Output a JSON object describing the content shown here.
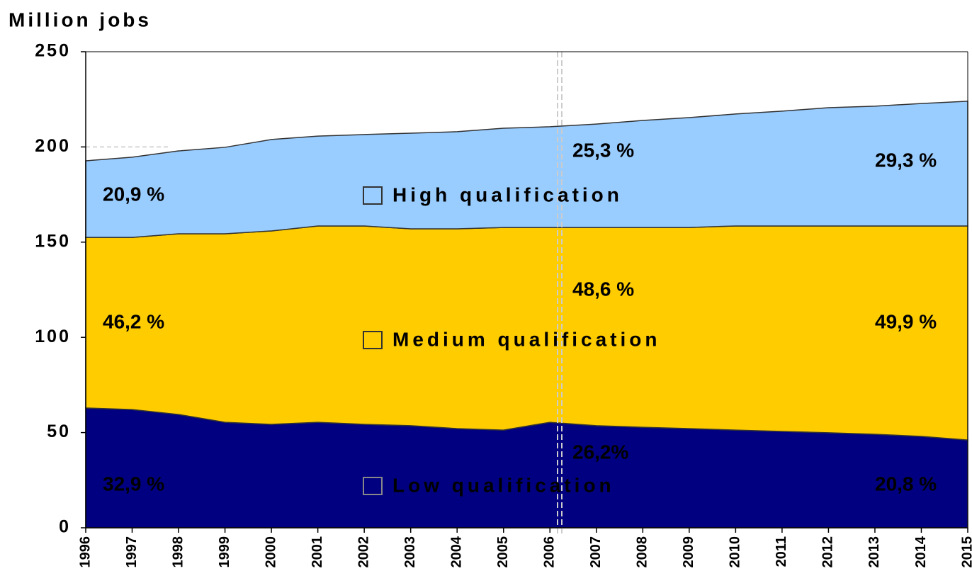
{
  "chart_data": {
    "type": "stacked_area",
    "title": "Million jobs",
    "x": [
      1996,
      1997,
      1998,
      1999,
      2000,
      2001,
      2002,
      2003,
      2004,
      2005,
      2006,
      2007,
      2008,
      2009,
      2010,
      2011,
      2012,
      2013,
      2014,
      2015
    ],
    "xlim": [
      1996,
      2015
    ],
    "ylim": [
      0,
      250
    ],
    "yticks": [
      0,
      50,
      100,
      150,
      200,
      250
    ],
    "series": [
      {
        "name": "Low qualification",
        "color": "#000080",
        "values": [
          62.9,
          62.1,
          59.5,
          55.4,
          54.3,
          55.4,
          54.3,
          53.6,
          52.1,
          51.3,
          55.4,
          53.6,
          52.8,
          52.1,
          51.3,
          50.6,
          49.9,
          49.1,
          48.0,
          46.1
        ]
      },
      {
        "name": "Medium qualification",
        "color": "#ffcc00",
        "values": [
          89.6,
          90.4,
          94.9,
          99.0,
          101.6,
          103.1,
          104.2,
          103.4,
          104.9,
          106.4,
          102.3,
          104.1,
          104.9,
          105.6,
          107.2,
          107.9,
          108.6,
          109.4,
          110.5,
          112.4
        ]
      },
      {
        "name": "High qualification",
        "color": "#99ccff",
        "values": [
          40.2,
          42.1,
          43.5,
          45.4,
          48.0,
          47.2,
          48.0,
          50.2,
          51.0,
          52.1,
          52.9,
          54.3,
          56.2,
          57.7,
          58.8,
          60.3,
          62.1,
          62.9,
          64.3,
          65.5
        ]
      }
    ],
    "annotations": [
      "32,9 %",
      "26,2%",
      "20,8 %",
      "46,2 %",
      "48,6 %",
      "49,9 %",
      "20,9 %",
      "25,3 %",
      "29,3 %"
    ]
  }
}
